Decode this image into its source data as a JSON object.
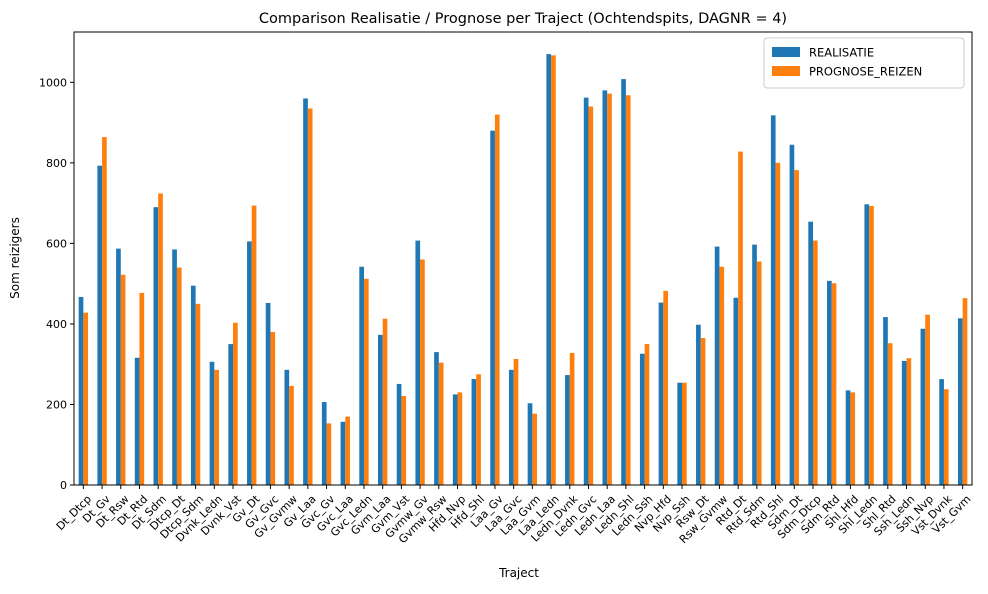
{
  "chart_data": {
    "type": "bar",
    "title": "Comparison Realisatie / Prognose per Traject (Ochtendspits, DAGNR = 4)",
    "xlabel": "Traject",
    "ylabel": "Som reizigers",
    "ylim": [
      0,
      1125
    ],
    "yticks": [
      0,
      200,
      400,
      600,
      800,
      1000
    ],
    "grid": false,
    "legend_position": "top-right",
    "categories": [
      "Dt_Dtcp",
      "Dt_Gv",
      "Dt_Rsw",
      "Dt_Rtd",
      "Dt_Sdm",
      "Dtcp_Dt",
      "Dtcp_Sdm",
      "Dvnk_Ledn",
      "Dvnk_Vst",
      "Gv_Dt",
      "Gv_Gvc",
      "Gv_Gvmw",
      "Gv_Laa",
      "Gvc_Gv",
      "Gvc_Laa",
      "Gvc_Ledn",
      "Gvm_Laa",
      "Gvm_Vst",
      "Gvmw_Gv",
      "Gvmw_Rsw",
      "Hfd_Nvp",
      "Hfd_Shl",
      "Laa_Gv",
      "Laa_Gvc",
      "Laa_Gvm",
      "Laa_Ledn",
      "Ledn_Dvnk",
      "Ledn_Gvc",
      "Ledn_Laa",
      "Ledn_Shl",
      "Ledn_Ssh",
      "Nvp_Hfd",
      "Nvp_Ssh",
      "Rsw_Dt",
      "Rsw_Gvmw",
      "Rtd_Dt",
      "Rtd_Sdm",
      "Rtd_Shl",
      "Sdm_Dt",
      "Sdm_Dtcp",
      "Sdm_Rtd",
      "Shl_Hfd",
      "Shl_Ledn",
      "Shl_Rtd",
      "Ssh_Ledn",
      "Ssh_Nvp",
      "Vst_Dvnk",
      "Vst_Gvm"
    ],
    "series": [
      {
        "name": "REALISATIE",
        "color": "#1f77b4",
        "values": [
          467,
          793,
          587,
          316,
          690,
          585,
          495,
          306,
          350,
          605,
          452,
          286,
          960,
          206,
          157,
          542,
          373,
          251,
          607,
          330,
          225,
          263,
          880,
          286,
          203,
          1070,
          273,
          962,
          980,
          1008,
          326,
          453,
          254,
          398,
          592,
          465,
          597,
          918,
          845,
          654,
          507,
          235,
          697,
          417,
          308,
          388,
          263,
          414
        ]
      },
      {
        "name": "PROGNOSE_REIZEN",
        "color": "#ff7f0e",
        "values": [
          428,
          864,
          522,
          477,
          724,
          540,
          450,
          286,
          403,
          694,
          380,
          246,
          935,
          153,
          170,
          512,
          413,
          221,
          560,
          304,
          230,
          275,
          920,
          313,
          177,
          1067,
          328,
          940,
          972,
          968,
          350,
          482,
          254,
          365,
          542,
          828,
          555,
          800,
          782,
          607,
          501,
          230,
          693,
          352,
          315,
          423,
          238,
          464
        ]
      }
    ]
  }
}
